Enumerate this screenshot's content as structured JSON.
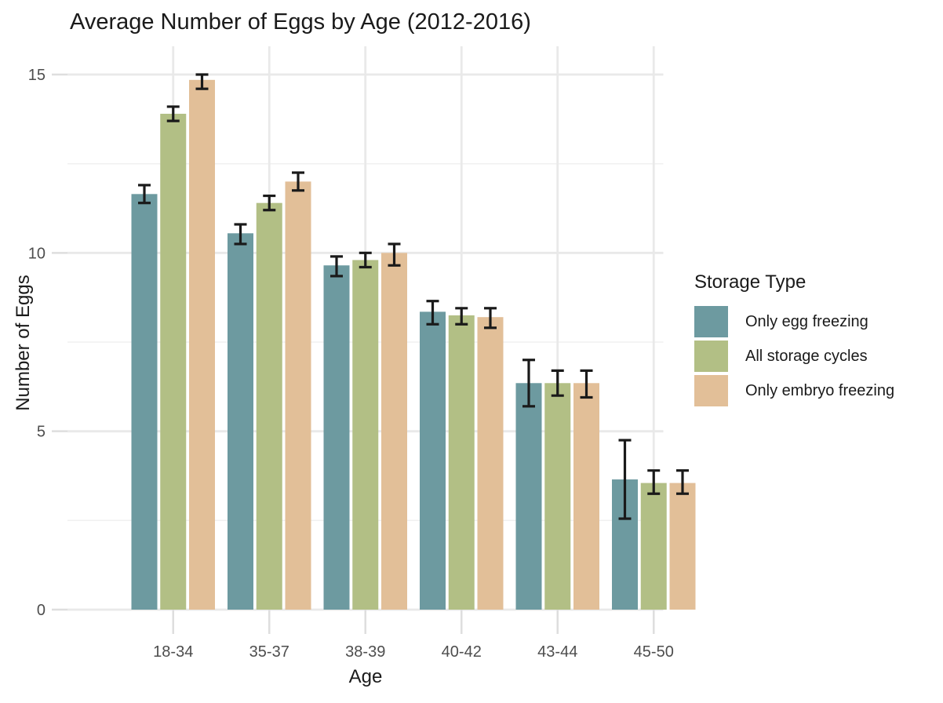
{
  "title": "Average Number of Eggs by Age (2012-2016)",
  "chart_data": {
    "type": "bar",
    "title": "Average Number of Eggs by Age (2012-2016)",
    "xlabel": "Age",
    "ylabel": "Number of Eggs",
    "legend_title": "Storage Type",
    "legend_position": "right",
    "grid": "major+minor horizontal, major vertical",
    "categories": [
      "18-34",
      "35-37",
      "38-39",
      "40-42",
      "43-44",
      "45-50"
    ],
    "y_ticks": [
      0,
      5,
      10,
      15
    ],
    "y_minor_gridlines": [
      2.5,
      7.5,
      12.5
    ],
    "ylim": [
      0,
      15.8
    ],
    "error_bars": true,
    "series": [
      {
        "name": "Only egg freezing",
        "color": "#6d9aa0",
        "values": [
          11.65,
          10.55,
          9.65,
          8.35,
          6.35,
          3.65
        ],
        "err_low": [
          11.4,
          10.25,
          9.35,
          8.0,
          5.7,
          2.55
        ],
        "err_high": [
          11.9,
          10.8,
          9.9,
          8.65,
          7.0,
          4.75
        ]
      },
      {
        "name": "All storage cycles",
        "color": "#b2bf85",
        "values": [
          13.9,
          11.4,
          9.8,
          8.25,
          6.35,
          3.55
        ],
        "err_low": [
          13.7,
          11.2,
          9.6,
          8.0,
          6.0,
          3.25
        ],
        "err_high": [
          14.1,
          11.6,
          10.0,
          8.45,
          6.7,
          3.9
        ]
      },
      {
        "name": "Only embryo freezing",
        "color": "#e2bf98",
        "values": [
          14.85,
          12.0,
          10.0,
          8.2,
          6.35,
          3.55
        ],
        "err_low": [
          14.6,
          11.75,
          9.65,
          7.9,
          5.95,
          3.25
        ],
        "err_high": [
          15.0,
          12.25,
          10.25,
          8.45,
          6.7,
          3.9
        ]
      }
    ],
    "style_colors": {
      "grid_major": "#e9e9e9",
      "grid_minor": "#f1f1f1",
      "tick": "#dedede",
      "tick_label": "#4d4d4d",
      "error_bar": "#1a1a1a"
    }
  }
}
